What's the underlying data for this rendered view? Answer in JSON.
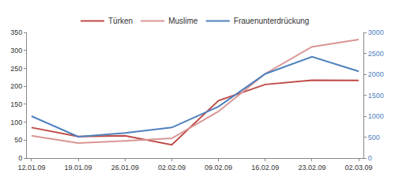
{
  "chart_data": {
    "type": "line",
    "categories": [
      "12.01.09",
      "19.01.09",
      "26.01.09",
      "02.02.09",
      "09.02.09",
      "16.02.09",
      "23.02.09",
      "02.03.09"
    ],
    "series": [
      {
        "name": "Türken",
        "color": "#be4b48",
        "values": [
          85,
          60,
          62,
          37,
          160,
          205,
          217,
          216
        ]
      },
      {
        "name": "Muslime",
        "color": "#d99694",
        "values": [
          62,
          42,
          48,
          55,
          130,
          235,
          310,
          330
        ]
      },
      {
        "name": "Frauenunterdrückung",
        "color": "#4f81bd",
        "axis": "y2",
        "values": [
          1000,
          510,
          600,
          730,
          1230,
          2010,
          2420,
          2070
        ]
      }
    ],
    "ylim": [
      0,
      350
    ],
    "yticks": [
      0,
      50,
      100,
      150,
      200,
      250,
      300,
      350
    ],
    "y2lim": [
      0,
      3000
    ],
    "y2ticks": [
      0,
      500,
      1000,
      1500,
      2000,
      2500,
      3000
    ],
    "grid": false,
    "legend": "top"
  }
}
